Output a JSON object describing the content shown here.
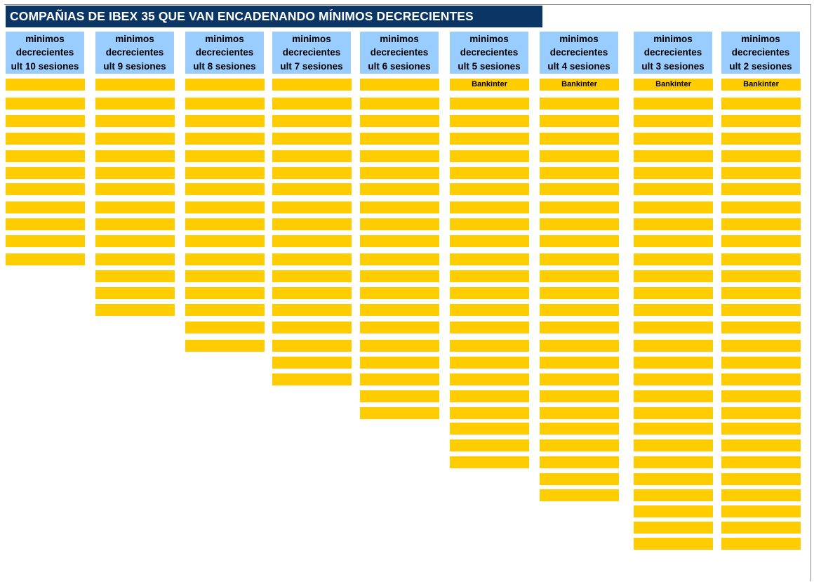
{
  "title": "COMPAÑIAS DE IBEX 35 QUE VAN ENCADENANDO MÍNIMOS DECRECIENTES",
  "columns": [
    {
      "id": "10",
      "header": [
        "minimos",
        "decrecientes",
        "ult 10 sesiones"
      ],
      "cells": [
        "",
        "",
        "",
        "",
        "",
        "",
        "",
        "",
        "",
        "",
        ""
      ]
    },
    {
      "id": "9",
      "header": [
        "minimos",
        "decrecientes",
        "ult 9 sesiones"
      ],
      "cells": [
        "",
        "",
        "",
        "",
        "",
        "",
        "",
        "",
        "",
        "",
        "",
        "",
        "",
        ""
      ]
    },
    {
      "id": "8",
      "header": [
        "minimos",
        "decrecientes",
        "ult 8 sesiones"
      ],
      "cells": [
        "",
        "",
        "",
        "",
        "",
        "",
        "",
        "",
        "",
        "",
        "",
        "",
        "",
        "",
        "",
        ""
      ]
    },
    {
      "id": "7",
      "header": [
        "minimos",
        "decrecientes",
        "ult 7 sesiones"
      ],
      "cells": [
        "",
        "",
        "",
        "",
        "",
        "",
        "",
        "",
        "",
        "",
        "",
        "",
        "",
        "",
        "",
        "",
        "",
        ""
      ]
    },
    {
      "id": "6",
      "header": [
        "minimos",
        "decrecientes",
        "ult 6 sesiones"
      ],
      "cells": [
        "",
        "",
        "",
        "",
        "",
        "",
        "",
        "",
        "",
        "",
        "",
        "",
        "",
        "",
        "",
        "",
        "",
        "",
        "",
        ""
      ]
    },
    {
      "id": "5",
      "header": [
        "minimos",
        "decrecientes",
        "ult 5 sesiones"
      ],
      "cells": [
        "Bankinter",
        "",
        "",
        "",
        "",
        "",
        "",
        "",
        "",
        "",
        "",
        "",
        "",
        "",
        "",
        "",
        "",
        "",
        "",
        "",
        "",
        "",
        ""
      ]
    },
    {
      "id": "4",
      "header": [
        "minimos",
        "decrecientes",
        "ult 4 sesiones"
      ],
      "cells": [
        "Bankinter",
        "",
        "",
        "",
        "",
        "",
        "",
        "",
        "",
        "",
        "",
        "",
        "",
        "",
        "",
        "",
        "",
        "",
        "",
        "",
        "",
        "",
        "",
        "",
        ""
      ]
    },
    {
      "id": "3",
      "header": [
        "minimos",
        "decrecientes",
        "ult 3 sesiones"
      ],
      "cells": [
        "Bankinter",
        "",
        "",
        "",
        "",
        "",
        "",
        "",
        "",
        "",
        "",
        "",
        "",
        "",
        "",
        "",
        "",
        "",
        "",
        "",
        "",
        "",
        "",
        "",
        "",
        "",
        "",
        ""
      ]
    },
    {
      "id": "2",
      "header": [
        "minimos",
        "decrecientes",
        "ult 2 sesiones"
      ],
      "cells": [
        "Bankinter",
        "",
        "",
        "",
        "",
        "",
        "",
        "",
        "",
        "",
        "",
        "",
        "",
        "",
        "",
        "",
        "",
        "",
        "",
        "",
        "",
        "",
        "",
        "",
        "",
        "",
        "",
        ""
      ]
    }
  ]
}
